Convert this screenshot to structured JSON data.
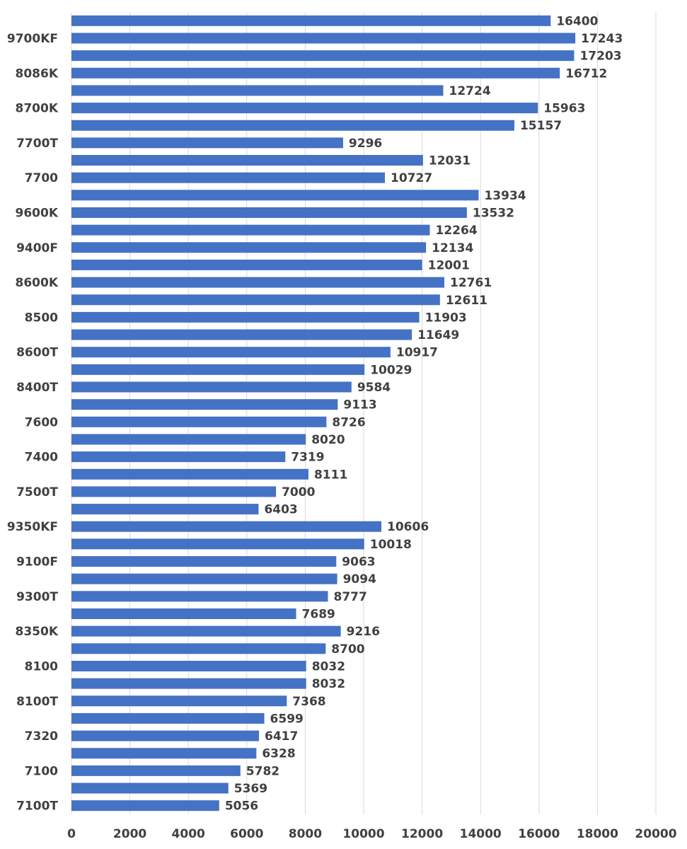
{
  "chart_data": {
    "type": "bar",
    "orientation": "horizontal",
    "title": "",
    "xlabel": "",
    "ylabel": "",
    "xlim": [
      0,
      20000
    ],
    "x_ticks": [
      "0",
      "2000",
      "4000",
      "6000",
      "8000",
      "10000",
      "12000",
      "14000",
      "16000",
      "18000",
      "20000"
    ],
    "grid": true,
    "bar_color": "#4472c4",
    "categories": [
      "",
      "9700KF",
      "",
      "8086K",
      "",
      "8700K",
      "",
      "7700T",
      "",
      "7700",
      "",
      "9600K",
      "",
      "9400F",
      "",
      "8600K",
      "",
      "8500",
      "",
      "8600T",
      "",
      "8400T",
      "",
      "7600",
      "",
      "7400",
      "",
      "7500T",
      "",
      "9350KF",
      "",
      "9100F",
      "",
      "9300T",
      "",
      "8350K",
      "",
      "8100",
      "",
      "8100T",
      "",
      "7320",
      "",
      "7100",
      "",
      "7100T"
    ],
    "values": [
      16400,
      17243,
      17203,
      16712,
      12724,
      15963,
      15157,
      9296,
      12031,
      10727,
      13934,
      13532,
      12264,
      12134,
      12001,
      12761,
      12611,
      11903,
      11649,
      10917,
      10029,
      9584,
      9113,
      8726,
      8020,
      7319,
      8111,
      7000,
      6403,
      10606,
      10018,
      9063,
      9094,
      8777,
      7689,
      9216,
      8700,
      8032,
      8032,
      7368,
      6599,
      6417,
      6328,
      5782,
      5369,
      5056
    ]
  }
}
